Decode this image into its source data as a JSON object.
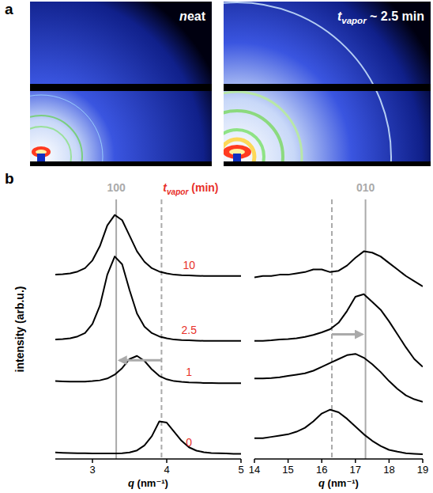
{
  "panel_a": {
    "panel_label": "a",
    "images": [
      {
        "label": "neat"
      },
      {
        "label": "tvapor ~ 2.5 min"
      }
    ]
  },
  "panel_b_label": "b",
  "chart_data": [
    {
      "type": "line",
      "title": "100",
      "series_title": "tvapor (min)",
      "x_label": "q (nm⁻¹)",
      "y_label": "intensity (arb.u.)",
      "x": [
        2.5,
        2.6,
        2.7,
        2.8,
        2.9,
        3.0,
        3.1,
        3.2,
        3.3,
        3.4,
        3.5,
        3.6,
        3.7,
        3.8,
        3.9,
        4.0,
        4.1,
        4.2,
        4.3,
        4.4,
        4.5,
        4.6,
        4.7,
        4.8,
        4.9,
        5.0
      ],
      "series": [
        {
          "name": "0",
          "color": "#000000",
          "values": [
            0.25,
            0.24,
            0.23,
            0.22,
            0.22,
            0.21,
            0.21,
            0.21,
            0.21,
            0.22,
            0.25,
            0.33,
            0.52,
            0.88,
            1.45,
            1.4,
            1.05,
            0.7,
            0.45,
            0.32,
            0.26,
            0.23,
            0.22,
            0.21,
            0.2,
            0.2
          ]
        },
        {
          "name": "1",
          "color": "#000000",
          "values": [
            3.0,
            2.99,
            2.98,
            2.98,
            2.98,
            3.0,
            3.03,
            3.1,
            3.25,
            3.5,
            3.85,
            3.97,
            3.78,
            3.45,
            3.2,
            3.07,
            3.0,
            2.97,
            2.95,
            2.94,
            2.93,
            2.93,
            2.92,
            2.92,
            2.92,
            2.92
          ]
        },
        {
          "name": "2.5",
          "color": "#000000",
          "values": [
            4.6,
            4.62,
            4.65,
            4.72,
            4.85,
            5.2,
            5.9,
            7.1,
            7.8,
            7.5,
            6.5,
            5.6,
            5.1,
            4.85,
            4.72,
            4.65,
            4.6,
            4.58,
            4.57,
            4.56,
            4.55,
            4.55,
            4.55,
            4.55,
            4.55,
            4.55
          ]
        },
        {
          "name": "10",
          "color": "#000000",
          "values": [
            7.1,
            7.12,
            7.15,
            7.22,
            7.35,
            7.65,
            8.2,
            9.0,
            9.4,
            9.2,
            8.6,
            8.0,
            7.6,
            7.35,
            7.22,
            7.15,
            7.1,
            7.08,
            7.07,
            7.06,
            7.05,
            7.05,
            7.05,
            7.05,
            7.05,
            7.05
          ]
        }
      ],
      "reference_lines": [
        {
          "value": 3.93,
          "line_style": "dashed"
        },
        {
          "value": 3.32,
          "line_style": "solid"
        }
      ],
      "arrow": {
        "from": 3.93,
        "to": 3.32,
        "y": 3.8
      },
      "xlim": [
        2.5,
        5
      ],
      "xticks": [
        3,
        4,
        5
      ],
      "ylim": [
        0,
        10
      ],
      "tick_labels": "x",
      "grid": false
    },
    {
      "type": "line",
      "title": "010",
      "x_label": "q (nm⁻¹)",
      "x": [
        14,
        14.25,
        14.5,
        14.75,
        15,
        15.25,
        15.5,
        15.75,
        16,
        16.25,
        16.5,
        16.75,
        17,
        17.25,
        17.5,
        17.75,
        18,
        18.25,
        18.5,
        18.75,
        19
      ],
      "series": [
        {
          "color": "#000000",
          "values": [
            0.8,
            0.8,
            0.85,
            0.9,
            0.95,
            1.05,
            1.2,
            1.45,
            1.75,
            1.9,
            1.8,
            1.55,
            1.25,
            0.95,
            0.7,
            0.5,
            0.35,
            0.28,
            0.22,
            0.2,
            0.18
          ]
        },
        {
          "color": "#000000",
          "values": [
            3.1,
            3.1,
            3.12,
            3.15,
            3.2,
            3.25,
            3.3,
            3.4,
            3.55,
            3.7,
            3.85,
            4.0,
            4.05,
            3.9,
            3.65,
            3.35,
            3.0,
            2.7,
            2.45,
            2.3,
            2.2
          ]
        },
        {
          "color": "#000000",
          "values": [
            4.55,
            4.55,
            4.57,
            4.6,
            4.62,
            4.65,
            4.7,
            4.78,
            4.88,
            5.0,
            5.25,
            5.7,
            6.25,
            6.35,
            6.05,
            5.75,
            5.3,
            4.8,
            4.3,
            3.85,
            3.55
          ]
        },
        {
          "color": "#000000",
          "values": [
            7.0,
            7.05,
            7.05,
            7.1,
            7.1,
            7.15,
            7.2,
            7.3,
            7.3,
            7.2,
            7.25,
            7.45,
            7.75,
            8.0,
            7.95,
            7.8,
            7.55,
            7.3,
            7.05,
            6.85,
            6.65
          ]
        }
      ],
      "reference_lines": [
        {
          "value": 16.3,
          "line_style": "dashed"
        },
        {
          "value": 17.3,
          "line_style": "solid"
        }
      ],
      "arrow": {
        "from": 16.3,
        "to": 17.3,
        "y": 4.8
      },
      "xlim": [
        14,
        19
      ],
      "xticks": [
        14,
        15,
        16,
        17,
        18,
        19
      ],
      "ylim": [
        0,
        10
      ],
      "tick_labels": "x",
      "grid": false
    }
  ]
}
